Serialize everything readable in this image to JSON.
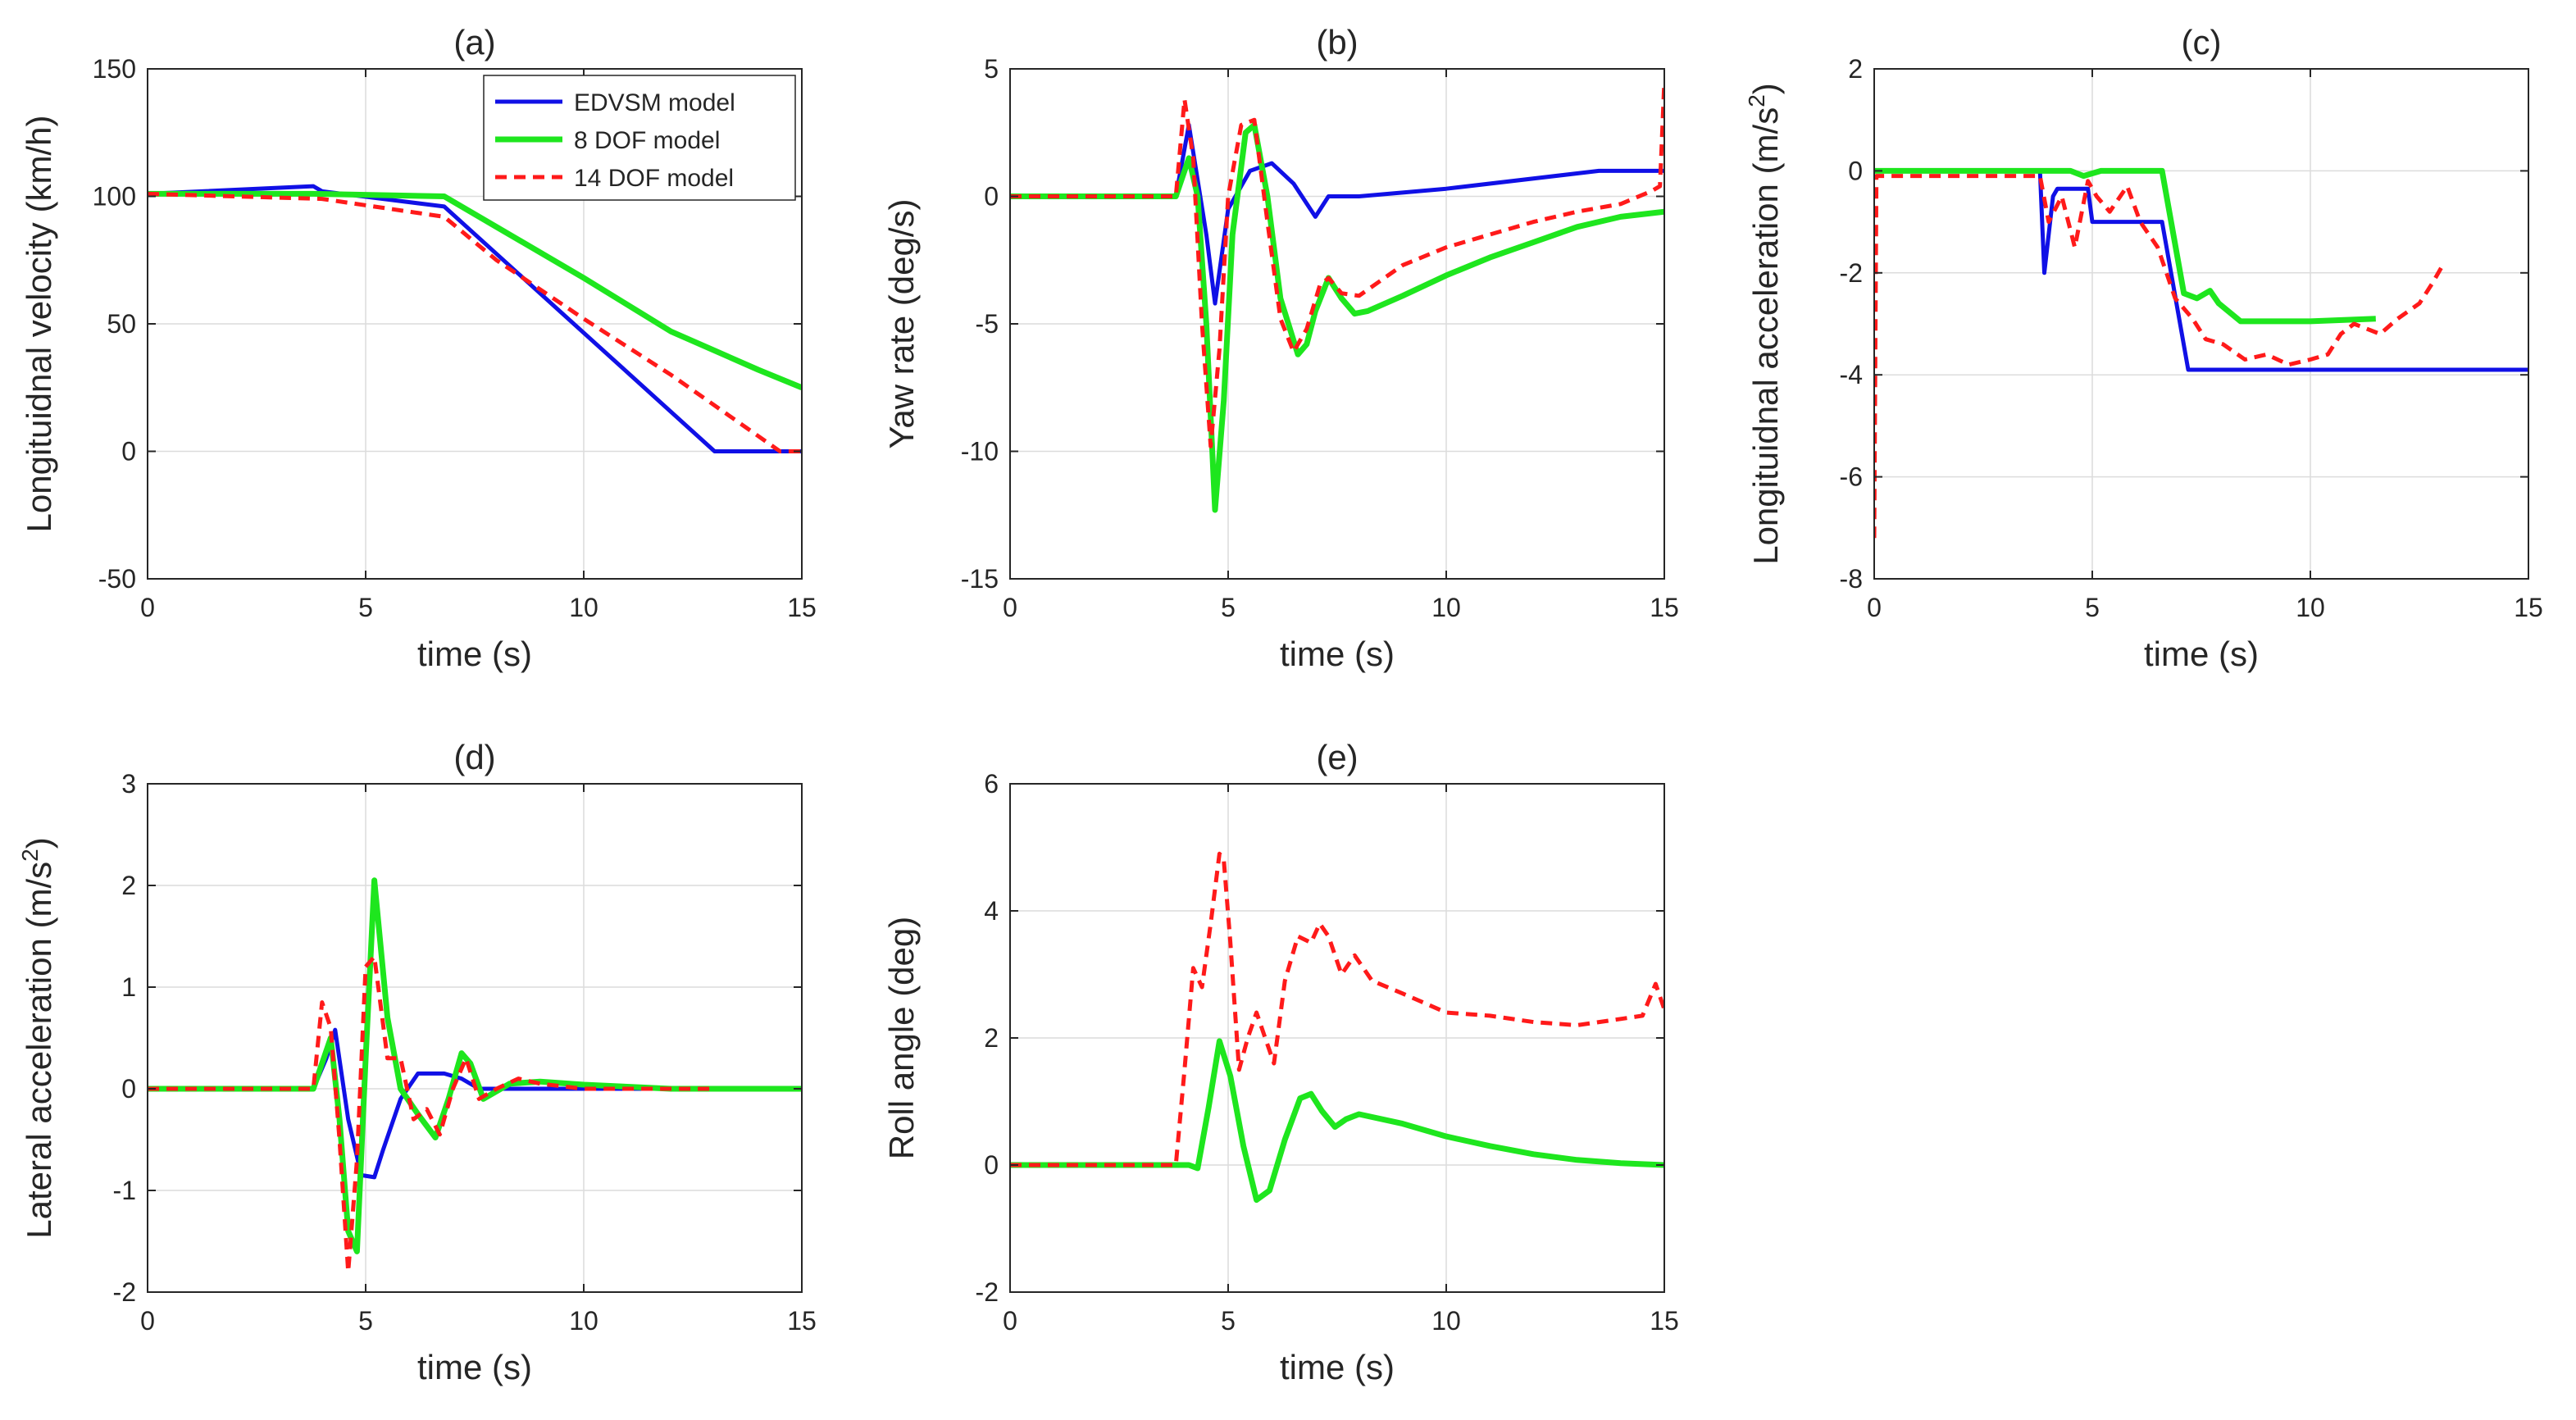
{
  "colors": {
    "edvsm": "#1010e6",
    "dof8": "#1ee61e",
    "dof14": "#ff1a1a"
  },
  "legend": [
    {
      "name": "EDVSM model",
      "color": "#1010e6",
      "dash": ""
    },
    {
      "name": "8 DOF model",
      "color": "#1ee61e",
      "dash": ""
    },
    {
      "name": "14 DOF model",
      "color": "#ff1a1a",
      "dash": "14,9"
    }
  ],
  "chart_data": [
    {
      "id": "a",
      "type": "line",
      "title": "(a)",
      "xlabel": "time (s)",
      "ylabel": "Longituidnal velocity (km/h)",
      "xlim": [
        0,
        15
      ],
      "ylim": [
        -50,
        150
      ],
      "xticks": [
        0,
        5,
        10,
        15
      ],
      "yticks": [
        -50,
        0,
        50,
        100,
        150
      ],
      "grid": true,
      "legend": "top-right",
      "series": [
        {
          "name": "EDVSM model",
          "color": "#1010e6",
          "dash": "",
          "width": 5,
          "x": [
            0,
            3.8,
            4,
            6.8,
            13,
            15
          ],
          "y": [
            101,
            104,
            102,
            96,
            0,
            0
          ]
        },
        {
          "name": "8 DOF model",
          "color": "#1ee61e",
          "dash": "",
          "width": 7,
          "x": [
            0,
            3.8,
            6.8,
            8,
            10,
            12,
            14,
            15
          ],
          "y": [
            101,
            101,
            100,
            88,
            68,
            47,
            32,
            25
          ]
        },
        {
          "name": "14 DOF model",
          "color": "#ff1a1a",
          "dash": "14,9",
          "width": 5,
          "x": [
            0,
            4,
            6.8,
            8,
            10,
            12,
            13.5,
            14.5,
            15
          ],
          "y": [
            101,
            99,
            92,
            75,
            52,
            30,
            12,
            0,
            0
          ]
        }
      ]
    },
    {
      "id": "b",
      "type": "line",
      "title": "(b)",
      "xlabel": "time (s)",
      "ylabel": "Yaw rate (deg/s)",
      "xlim": [
        0,
        15
      ],
      "ylim": [
        -15,
        5
      ],
      "xticks": [
        0,
        5,
        10,
        15
      ],
      "yticks": [
        -15,
        -10,
        -5,
        0,
        5
      ],
      "grid": true,
      "series": [
        {
          "name": "EDVSM model",
          "color": "#1010e6",
          "dash": "",
          "width": 5,
          "x": [
            0,
            3.8,
            4.1,
            4.5,
            4.7,
            5,
            5.5,
            6,
            6.5,
            7,
            7.3,
            8,
            10,
            13.5,
            15
          ],
          "y": [
            0,
            0,
            2.8,
            -1.5,
            -4.2,
            -0.5,
            1,
            1.3,
            0.5,
            -0.8,
            0,
            0,
            0.3,
            1,
            1
          ]
        },
        {
          "name": "8 DOF model",
          "color": "#1ee61e",
          "dash": "",
          "width": 7,
          "x": [
            0,
            3.8,
            4.1,
            4.3,
            4.5,
            4.7,
            4.9,
            5.1,
            5.4,
            5.6,
            5.9,
            6.2,
            6.6,
            6.8,
            7,
            7.3,
            7.6,
            7.9,
            8.2,
            9,
            10,
            11,
            12,
            13,
            14,
            15
          ],
          "y": [
            0,
            0,
            1.5,
            0,
            -5,
            -12.3,
            -8,
            -1.5,
            2.5,
            2.8,
            0,
            -4,
            -6.2,
            -5.8,
            -4.5,
            -3.2,
            -4,
            -4.6,
            -4.5,
            -3.9,
            -3.1,
            -2.4,
            -1.8,
            -1.2,
            -0.8,
            -0.6
          ]
        },
        {
          "name": "14 DOF model",
          "color": "#ff1a1a",
          "dash": "14,9",
          "width": 5,
          "x": [
            0,
            3.8,
            4,
            4.2,
            4.4,
            4.6,
            4.8,
            5,
            5.3,
            5.6,
            5.9,
            6.2,
            6.5,
            6.8,
            7.1,
            7.3,
            7.6,
            8,
            9,
            10,
            11,
            12,
            13,
            14,
            14.7,
            14.9,
            15
          ],
          "y": [
            0,
            0,
            3.8,
            1.5,
            -5,
            -9.8,
            -6,
            0,
            2.8,
            3,
            -1,
            -4.8,
            -6.1,
            -5.2,
            -3.5,
            -3.2,
            -3.8,
            -3.9,
            -2.7,
            -2,
            -1.5,
            -1,
            -0.6,
            -0.3,
            0.2,
            0.4,
            4.5
          ]
        }
      ]
    },
    {
      "id": "c",
      "type": "line",
      "title": "(c)",
      "xlabel": "time (s)",
      "ylabel": "Longituidnal acceleration (m/s",
      "ylabel_sup": "2",
      "ylabel_end": ")",
      "xlim": [
        0,
        15
      ],
      "ylim": [
        -8,
        2
      ],
      "xticks": [
        0,
        5,
        10,
        15
      ],
      "yticks": [
        -8,
        -6,
        -4,
        -2,
        0,
        2
      ],
      "grid": true,
      "series": [
        {
          "name": "EDVSM model",
          "color": "#1010e6",
          "dash": "",
          "width": 5,
          "x": [
            0,
            3.8,
            3.9,
            4.1,
            4.2,
            4.9,
            5,
            6.6,
            7.2,
            15
          ],
          "y": [
            0,
            0,
            -2,
            -0.5,
            -0.35,
            -0.35,
            -1,
            -1,
            -3.9,
            -3.9
          ]
        },
        {
          "name": "8 DOF model",
          "color": "#1ee61e",
          "dash": "",
          "width": 7,
          "x": [
            0,
            4.5,
            4.8,
            5.2,
            6.6,
            7.1,
            7.4,
            7.7,
            7.9,
            8.4,
            10,
            11.5
          ],
          "y": [
            0,
            0,
            -0.1,
            0,
            0,
            -2.4,
            -2.5,
            -2.35,
            -2.6,
            -2.95,
            -2.95,
            -2.9
          ]
        },
        {
          "name": "14 DOF model",
          "color": "#ff1a1a",
          "dash": "14,9",
          "width": 5,
          "x": [
            0,
            0.05,
            3.8,
            4,
            4.3,
            4.6,
            4.9,
            5.1,
            5.4,
            5.8,
            6.1,
            6.5,
            6.9,
            7.3,
            7.6,
            8,
            8.5,
            9,
            9.5,
            10,
            10.4,
            10.7,
            11,
            11.3,
            11.6,
            12,
            12.5,
            12.8,
            13
          ],
          "y": [
            -7.2,
            -0.1,
            -0.1,
            -1,
            -0.5,
            -1.5,
            -0.2,
            -0.5,
            -0.8,
            -0.3,
            -1,
            -1.5,
            -2.5,
            -2.9,
            -3.3,
            -3.4,
            -3.7,
            -3.6,
            -3.8,
            -3.7,
            -3.6,
            -3.2,
            -3,
            -3.1,
            -3.2,
            -2.9,
            -2.6,
            -2.2,
            -1.9
          ]
        }
      ]
    },
    {
      "id": "d",
      "type": "line",
      "title": "(d)",
      "xlabel": "time (s)",
      "ylabel": "Lateral acceleration (m/s",
      "ylabel_sup": "2",
      "ylabel_end": ")",
      "xlim": [
        0,
        15
      ],
      "ylim": [
        -2,
        3
      ],
      "xticks": [
        0,
        5,
        10,
        15
      ],
      "yticks": [
        -2,
        -1,
        0,
        1,
        2,
        3
      ],
      "grid": true,
      "series": [
        {
          "name": "EDVSM model",
          "color": "#1010e6",
          "dash": "",
          "width": 5,
          "x": [
            0,
            3.8,
            4.1,
            4.3,
            4.6,
            4.9,
            5.2,
            5.4,
            5.8,
            6.2,
            6.6,
            6.8,
            7.2,
            7.6,
            8,
            15
          ],
          "y": [
            0,
            0,
            0.3,
            0.58,
            -0.3,
            -0.85,
            -0.87,
            -0.6,
            -0.1,
            0.15,
            0.15,
            0.15,
            0.1,
            0,
            0,
            0
          ]
        },
        {
          "name": "8 DOF model",
          "color": "#1ee61e",
          "dash": "",
          "width": 7,
          "x": [
            0,
            3.8,
            4,
            4.2,
            4.4,
            4.6,
            4.8,
            5,
            5.2,
            5.5,
            5.8,
            6.2,
            6.6,
            6.9,
            7.2,
            7.4,
            7.7,
            8.3,
            9,
            10,
            11,
            12,
            15
          ],
          "y": [
            0,
            0,
            0.25,
            0.5,
            -0.3,
            -1.4,
            -1.6,
            0.3,
            2.05,
            0.7,
            0,
            -0.25,
            -0.48,
            -0.1,
            0.35,
            0.25,
            -0.1,
            0.05,
            0.07,
            0.04,
            0.02,
            0,
            0
          ]
        },
        {
          "name": "14 DOF model",
          "color": "#ff1a1a",
          "dash": "14,9",
          "width": 5,
          "x": [
            0,
            3.8,
            4,
            4.2,
            4.4,
            4.6,
            4.8,
            5,
            5.2,
            5.5,
            5.8,
            6.1,
            6.4,
            6.7,
            7,
            7.3,
            7.6,
            8,
            8.5,
            9,
            10,
            11,
            12,
            13
          ],
          "y": [
            0,
            0,
            0.85,
            0.6,
            -0.5,
            -1.8,
            -0.7,
            1.2,
            1.3,
            0.3,
            0.3,
            -0.3,
            -0.2,
            -0.45,
            0,
            0.3,
            -0.1,
            0,
            0.1,
            0.05,
            0,
            0,
            0,
            0
          ]
        }
      ]
    },
    {
      "id": "e",
      "type": "line",
      "title": "(e)",
      "xlabel": "time (s)",
      "ylabel": "Roll angle (deg)",
      "xlim": [
        0,
        15
      ],
      "ylim": [
        -2,
        6
      ],
      "xticks": [
        0,
        5,
        10,
        15
      ],
      "yticks": [
        -2,
        0,
        2,
        4,
        6
      ],
      "grid": true,
      "series": [
        {
          "name": "8 DOF model",
          "color": "#1ee61e",
          "dash": "",
          "width": 7,
          "x": [
            0,
            4.1,
            4.3,
            4.55,
            4.8,
            5.05,
            5.35,
            5.65,
            5.95,
            6.3,
            6.65,
            6.9,
            7.15,
            7.45,
            7.7,
            8,
            9,
            10,
            11,
            12,
            13,
            14,
            15
          ],
          "y": [
            0,
            0,
            -0.05,
            0.9,
            1.95,
            1.4,
            0.3,
            -0.55,
            -0.4,
            0.4,
            1.05,
            1.12,
            0.85,
            0.6,
            0.72,
            0.8,
            0.65,
            0.45,
            0.3,
            0.17,
            0.08,
            0.03,
            0
          ]
        },
        {
          "name": "14 DOF model",
          "color": "#ff1a1a",
          "dash": "14,9",
          "width": 5,
          "x": [
            0,
            3.8,
            4,
            4.2,
            4.4,
            4.6,
            4.8,
            4.9,
            5.05,
            5.25,
            5.45,
            5.65,
            5.85,
            6.05,
            6.3,
            6.6,
            6.9,
            7.1,
            7.3,
            7.6,
            7.9,
            8.3,
            9,
            10,
            11,
            12,
            13,
            14,
            14.5,
            14.8,
            15
          ],
          "y": [
            0,
            0,
            1.5,
            3.1,
            2.8,
            3.8,
            4.9,
            4.8,
            3.5,
            1.5,
            2.0,
            2.4,
            2.0,
            1.6,
            2.9,
            3.6,
            3.5,
            3.8,
            3.6,
            3.0,
            3.3,
            2.9,
            2.7,
            2.4,
            2.35,
            2.25,
            2.2,
            2.3,
            2.35,
            2.85,
            2.45
          ]
        }
      ]
    }
  ]
}
